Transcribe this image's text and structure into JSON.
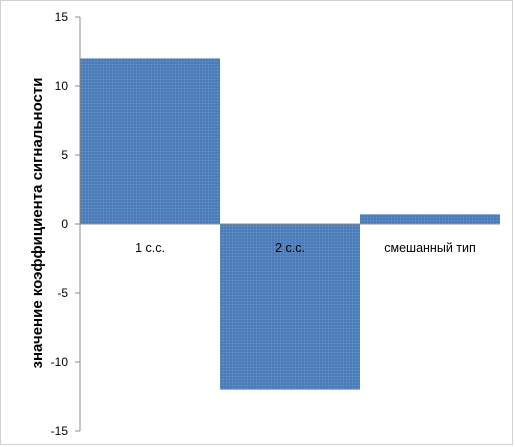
{
  "chart_data": {
    "type": "bar",
    "categories": [
      "1 с.с.",
      "2 с.с.",
      "смешанный тип"
    ],
    "values": [
      12,
      -12,
      0.7
    ],
    "title": "",
    "xlabel": "",
    "ylabel": "значение коэффициента сигнальности",
    "ylim": [
      -15,
      15
    ],
    "yticks": [
      -15,
      -10,
      -5,
      0,
      5,
      10,
      15
    ],
    "grid": false,
    "legend": "none",
    "bar_color": "#4f81bd",
    "bar_pattern": "dotted-texture"
  }
}
